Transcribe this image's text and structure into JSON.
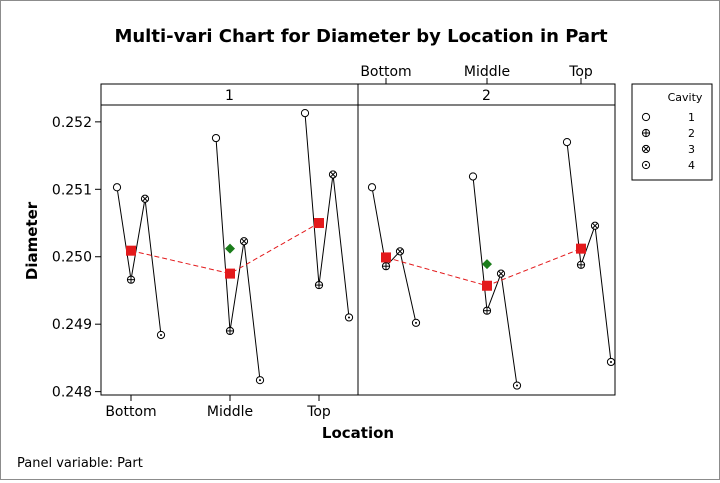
{
  "chart_data": {
    "type": "multi-vari",
    "title": "Multi-vari Chart for Diameter by Location in Part",
    "xlabel": "Location",
    "ylabel": "Diameter",
    "ylim": [
      0.24795,
      0.25225
    ],
    "yticks": [
      "0.248",
      "0.249",
      "0.250",
      "0.251",
      "0.252"
    ],
    "ytick_values": [
      0.248,
      0.249,
      0.25,
      0.251,
      0.252
    ],
    "locations": [
      "Bottom",
      "Middle",
      "Top"
    ],
    "panel_variable_label": "Panel variable: Part",
    "panels": [
      {
        "name": "1",
        "cavity_values": {
          "Bottom": [
            0.25103,
            0.24966,
            0.25086,
            0.24884
          ],
          "Middle": [
            0.25176,
            0.2489,
            0.25023,
            0.24817
          ],
          "Top": [
            0.25213,
            0.24958,
            0.25122,
            0.2491
          ]
        },
        "location_means": [
          0.25009,
          0.24975,
          0.2505
        ],
        "panel_mean": 0.25012
      },
      {
        "name": "2",
        "cavity_values": {
          "Bottom": [
            0.25103,
            0.24986,
            0.25008,
            0.24902
          ],
          "Middle": [
            0.25119,
            0.2492,
            0.24975,
            0.24809
          ],
          "Top": [
            0.2517,
            0.24988,
            0.25046,
            0.24844
          ]
        },
        "location_means": [
          0.24999,
          0.24957,
          0.25012
        ],
        "panel_mean": 0.24989
      }
    ],
    "legend": {
      "title": "Cavity",
      "entries": [
        "1",
        "2",
        "3",
        "4"
      ],
      "position": "right"
    },
    "colors": {
      "mean_marker": "#e31a1c",
      "mean_line": "#e31a1c",
      "panel_mean_marker": "#1b7d1b"
    }
  }
}
